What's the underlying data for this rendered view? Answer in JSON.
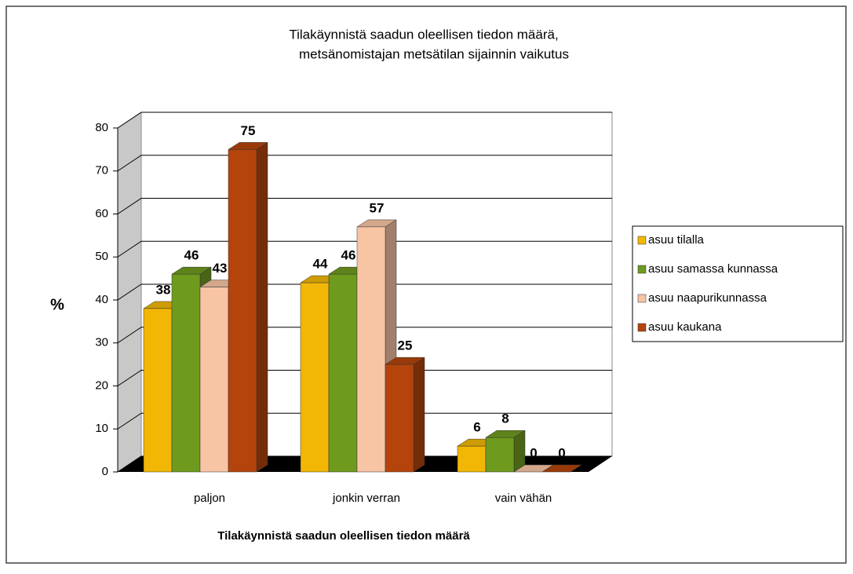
{
  "chart_data": {
    "type": "bar3d",
    "title": [
      "Tilakäynnistä saadun oleellisen tiedon määrä,",
      "metsänomistajan metsätilan sijainnin vaikutus"
    ],
    "y_label": "%",
    "x_label": "Tilakäynnistä saadun oleellisen tiedon määrä",
    "categories": [
      "paljon",
      "jonkin verran",
      "vain vähän"
    ],
    "series": [
      {
        "name": "asuu tilalla",
        "color": "#f2b705",
        "values": [
          38,
          44,
          6
        ]
      },
      {
        "name": "asuu samassa kunnassa",
        "color": "#6e9a1e",
        "values": [
          46,
          46,
          8
        ]
      },
      {
        "name": "asuu naapurikunnassa",
        "color": "#f7c4a4",
        "values": [
          43,
          57,
          0
        ]
      },
      {
        "name": "asuu kaukana",
        "color": "#b4440c",
        "values": [
          75,
          25,
          0
        ]
      }
    ],
    "ylim": [
      0,
      80
    ],
    "yticks": [
      0,
      10,
      20,
      30,
      40,
      50,
      60,
      70,
      80
    ],
    "grid": true,
    "legend": "right"
  }
}
